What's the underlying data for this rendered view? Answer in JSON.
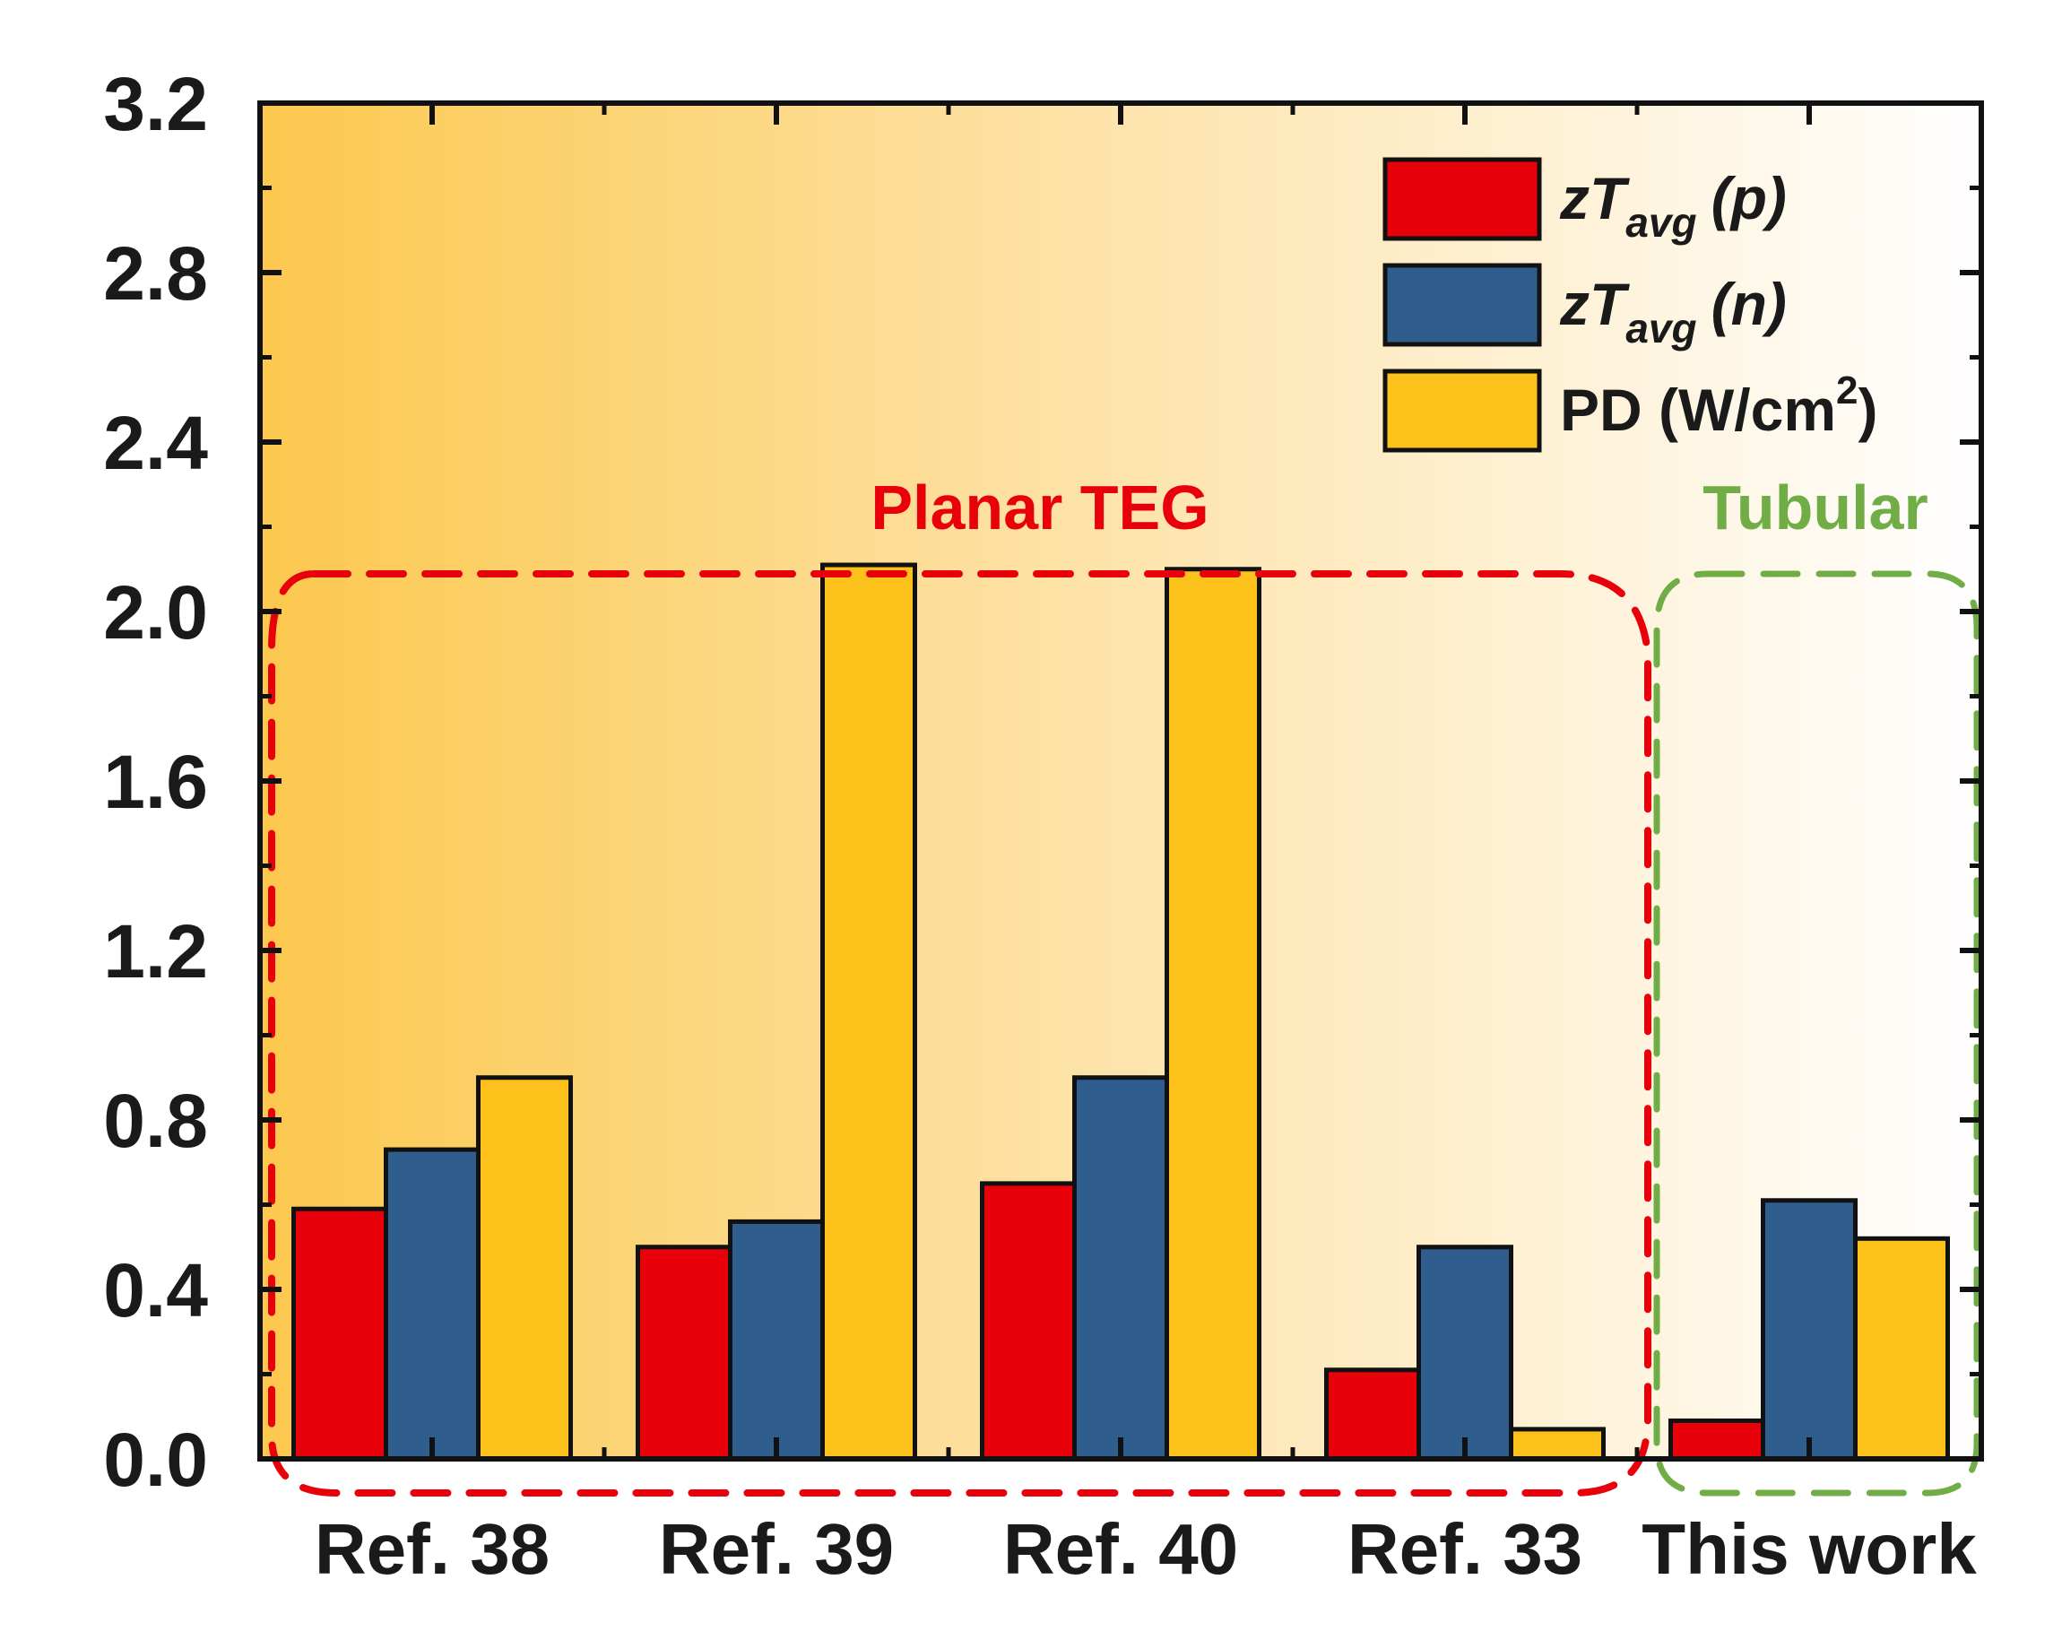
{
  "chart_data": {
    "type": "bar",
    "title": "",
    "xlabel": "",
    "ylabel": "",
    "ylim": [
      0,
      3.2
    ],
    "yticks": [
      "0.0",
      "0.4",
      "0.8",
      "1.2",
      "1.6",
      "2.0",
      "2.4",
      "2.8",
      "3.2"
    ],
    "categories": [
      "Ref. 38",
      "Ref. 39",
      "Ref. 40",
      "Ref. 33",
      "This work"
    ],
    "series": [
      {
        "name": "zT avg (p)",
        "color": "#e8000b",
        "values": [
          0.59,
          0.5,
          0.65,
          0.21,
          0.09
        ]
      },
      {
        "name": "zT avg (n)",
        "color": "#2e5d8e",
        "values": [
          0.73,
          0.56,
          0.9,
          0.5,
          0.61
        ]
      },
      {
        "name": "PD (W/cm2)",
        "color": "#fcc11a",
        "values": [
          0.9,
          2.11,
          2.1,
          0.07,
          0.52
        ]
      }
    ],
    "legend": {
      "position": "top-right",
      "items": [
        {
          "main": "zT",
          "sub": "avg",
          "suffix": "(p)"
        },
        {
          "main": "zT",
          "sub": "avg",
          "suffix": "(n)"
        },
        {
          "main": "PD (W/cm",
          "sup": "2",
          "suffix": ")"
        }
      ]
    },
    "annotations": [
      {
        "text": "Planar TEG",
        "color": "#e8000b",
        "categories": [
          "Ref. 38",
          "Ref. 39",
          "Ref. 40",
          "Ref. 33"
        ]
      },
      {
        "text": "Tubular",
        "color": "#70ad47",
        "categories": [
          "This work"
        ]
      }
    ],
    "background": {
      "gradient_from": "#fcc84e",
      "gradient_to": "#ffffff"
    }
  }
}
